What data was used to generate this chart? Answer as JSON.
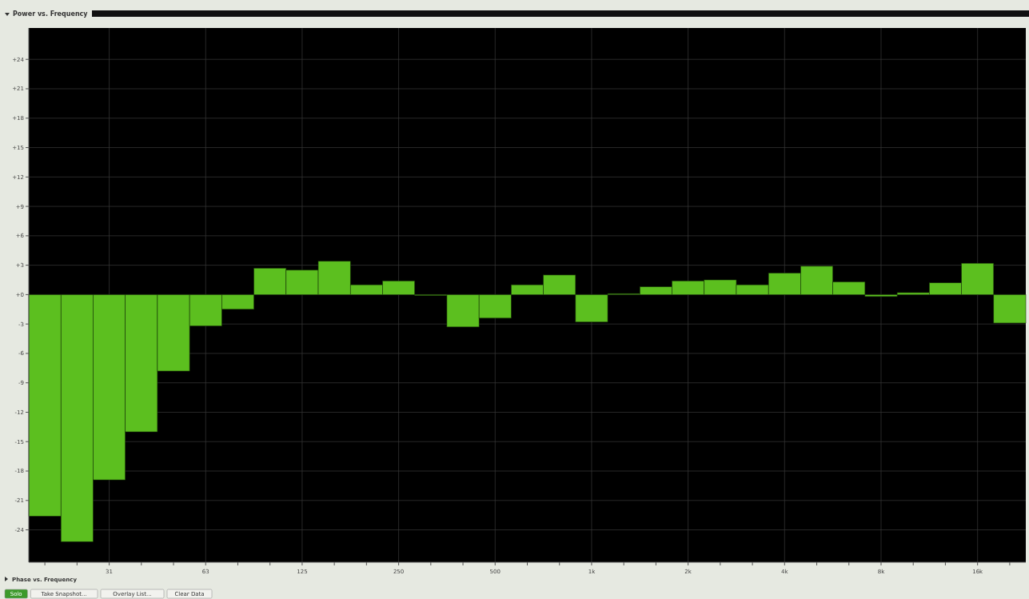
{
  "chart_data": {
    "type": "bar",
    "title": "Power vs. Frequency",
    "categories": [
      null,
      null,
      "31",
      null,
      null,
      "63",
      null,
      null,
      "125",
      null,
      null,
      "250",
      null,
      null,
      "500",
      null,
      null,
      "1k",
      null,
      null,
      "2k",
      null,
      null,
      "4k",
      null,
      null,
      "8k",
      null,
      null,
      "16k",
      null
    ],
    "values": [
      -22.6,
      -25.2,
      -18.9,
      -14.0,
      -7.8,
      -3.2,
      -1.5,
      2.7,
      2.5,
      3.4,
      1.0,
      1.4,
      -0.1,
      -3.3,
      -2.4,
      1.0,
      2.0,
      -2.8,
      0.1,
      0.8,
      1.4,
      1.5,
      1.0,
      2.2,
      2.9,
      1.3,
      -0.2,
      0.2,
      1.2,
      3.2,
      -2.9
    ],
    "color": "#5cbf1f",
    "ylim": [
      -27.3,
      27.2
    ],
    "yticks": [
      {
        "value": 24,
        "label": "+24"
      },
      {
        "value": 21,
        "label": "+21"
      },
      {
        "value": 18,
        "label": "+18"
      },
      {
        "value": 15,
        "label": "+15"
      },
      {
        "value": 12,
        "label": "+12"
      },
      {
        "value": 9,
        "label": "+9"
      },
      {
        "value": 6,
        "label": "+6"
      },
      {
        "value": 3,
        "label": "+3"
      },
      {
        "value": 0,
        "label": "+0"
      },
      -3,
      -6,
      -9,
      -12,
      -15,
      -18,
      -21,
      -24
    ],
    "grid": true,
    "annotations": [
      "Phase vs. Frequency",
      "Solo",
      "Take Snapshot...",
      "Overlay List...",
      "Clear Data"
    ]
  }
}
